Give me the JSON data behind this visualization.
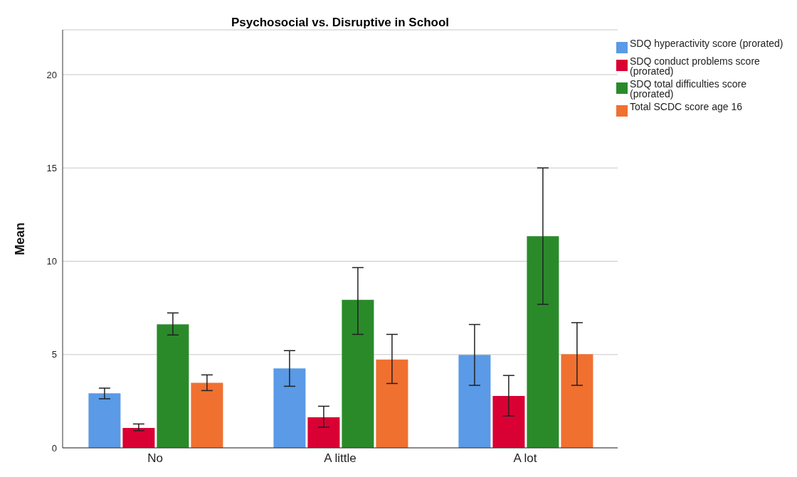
{
  "chart_data": {
    "type": "bar",
    "title": "Psychosocial vs. Disruptive in School",
    "ylabel": "Mean",
    "categories": [
      "No",
      "A little",
      "A lot"
    ],
    "series": [
      {
        "name": "SDQ hyperactivity score (prorated)",
        "color": "#5a9ae6",
        "values": [
          2.92,
          4.26,
          4.98
        ],
        "errors": [
          [
            2.63,
            3.2
          ],
          [
            3.3,
            5.21
          ],
          [
            3.35,
            6.61
          ]
        ]
      },
      {
        "name": "SDQ conduct problems score (prorated)",
        "color": "#d90034",
        "values": [
          1.07,
          1.64,
          2.78
        ],
        "errors": [
          [
            0.92,
            1.28
          ],
          [
            1.11,
            2.23
          ],
          [
            1.71,
            3.88
          ]
        ]
      },
      {
        "name": "SDQ total difficulties score (prorated)",
        "color": "#2a8a2a",
        "values": [
          6.62,
          7.93,
          11.34
        ],
        "errors": [
          [
            6.05,
            7.23
          ],
          [
            6.08,
            9.66
          ],
          [
            7.69,
            15.0
          ]
        ]
      },
      {
        "name": "Total SCDC score age 16",
        "color": "#f07030",
        "values": [
          3.49,
          4.73,
          5.02
        ],
        "errors": [
          [
            3.07,
            3.91
          ],
          [
            3.45,
            6.08
          ],
          [
            3.35,
            6.71
          ]
        ]
      }
    ],
    "ylim": [
      0,
      22.4
    ],
    "yticks": [
      0,
      5,
      10,
      15,
      20
    ],
    "grid": "y",
    "legend": "top right"
  }
}
